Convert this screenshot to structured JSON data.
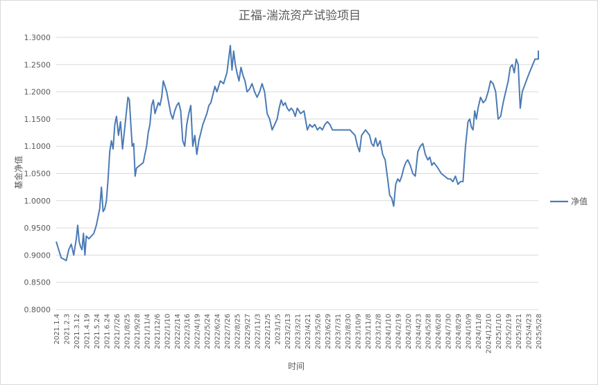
{
  "chart_data": {
    "type": "line",
    "title": "正福-湍流资产试验项目",
    "xlabel": "时间",
    "ylabel": "基金净值",
    "ylim": [
      0.8,
      1.3
    ],
    "y_ticks": [
      "0.8000",
      "0.8500",
      "0.9000",
      "0.9500",
      "1.0000",
      "1.0500",
      "1.1000",
      "1.1500",
      "1.2000",
      "1.2500",
      "1.3000"
    ],
    "grid": true,
    "legend_position": "right",
    "line_color": "#4a7ab5",
    "x_tick_labels": [
      "2021.1.4",
      "2021.2.3",
      "2021.3.12",
      "2021.4.19",
      "2021.5.24",
      "2021.6.24",
      "2021/7/26",
      "2021/8/25",
      "2021/9/28",
      "2021/11/4",
      "2021/12/6",
      "2022/1/10",
      "2022/2/14",
      "2022/3/16",
      "2022/4/19",
      "2022/5/24",
      "2022/6/24",
      "2022/7/26",
      "2022/8/25",
      "2022/9/27",
      "2022/11/3",
      "2022/12/5",
      "2023/1/5",
      "2023/2/13",
      "2023/3/21",
      "2023/4/21",
      "2023/5/26",
      "2023/6/29",
      "2023/7/31",
      "2023/8/30",
      "2023/10/9",
      "2023/11/8",
      "2023/12/8",
      "2024/1/10",
      "2024/2/19",
      "2024/3/20",
      "2024/4/23",
      "2024/5/28",
      "2024/6/28",
      "2024/7/30",
      "2024/8/29",
      "2024/10/9",
      "2024/11/8",
      "2024/12/10",
      "2025/1/10",
      "2025/2/19",
      "2025/3/21",
      "2025/4/23",
      "2025/5/28"
    ],
    "series": [
      {
        "name": "净值",
        "points": [
          [
            "2021.1.4",
            0.925
          ],
          [
            "2021.1.4",
            0.895
          ],
          [
            "2021.2.3",
            0.89
          ],
          [
            "2021.2.3",
            0.91
          ],
          [
            "2021.2.3",
            0.92
          ],
          [
            "2021.2.3",
            0.9
          ],
          [
            "2021.3.12",
            0.93
          ],
          [
            "2021.3.12",
            0.955
          ],
          [
            "2021.3.12",
            0.925
          ],
          [
            "2021.3.12",
            0.915
          ],
          [
            "2021.3.12",
            0.91
          ],
          [
            "2021.3.12",
            0.94
          ],
          [
            "2021.3.12",
            0.9
          ],
          [
            "2021.4.19",
            0.935
          ],
          [
            "2021.4.19",
            0.93
          ],
          [
            "2021.4.19",
            0.935
          ],
          [
            "2021.4.19",
            0.94
          ],
          [
            "2021.5.24",
            0.955
          ],
          [
            "2021.5.24",
            0.97
          ],
          [
            "2021.5.24",
            0.985
          ],
          [
            "2021.5.24",
            1.025
          ],
          [
            "2021.5.24",
            0.98
          ],
          [
            "2021.5.24",
            0.985
          ],
          [
            "2021.6.24",
            1.0
          ],
          [
            "2021.6.24",
            1.04
          ],
          [
            "2021.6.24",
            1.09
          ],
          [
            "2021.6.24",
            1.11
          ],
          [
            "2021.6.24",
            1.095
          ],
          [
            "2021.6.24",
            1.14
          ],
          [
            "2021/7/26",
            1.155
          ],
          [
            "2021/7/26",
            1.12
          ],
          [
            "2021/7/26",
            1.145
          ],
          [
            "2021/7/26",
            1.095
          ],
          [
            "2021/7/26",
            1.13
          ],
          [
            "2021/8/25",
            1.165
          ],
          [
            "2021/8/25",
            1.19
          ],
          [
            "2021/8/25",
            1.185
          ],
          [
            "2021/8/25",
            1.14
          ],
          [
            "2021/8/25",
            1.1
          ],
          [
            "2021/8/25",
            1.105
          ],
          [
            "2021/8/25",
            1.045
          ],
          [
            "2021/9/28",
            1.06
          ],
          [
            "2021/9/28",
            1.065
          ],
          [
            "2021/9/28",
            1.07
          ],
          [
            "2021/11/4",
            1.1
          ],
          [
            "2021/11/4",
            1.125
          ],
          [
            "2021/11/4",
            1.14
          ],
          [
            "2021/11/4",
            1.175
          ],
          [
            "2021/11/4",
            1.185
          ],
          [
            "2021/11/4",
            1.16
          ],
          [
            "2021/12/6",
            1.17
          ],
          [
            "2021/12/6",
            1.18
          ],
          [
            "2021/12/6",
            1.175
          ],
          [
            "2021/12/6",
            1.19
          ],
          [
            "2021/12/6",
            1.22
          ],
          [
            "2021/12/6",
            1.21
          ],
          [
            "2022/1/10",
            1.2
          ],
          [
            "2022/1/10",
            1.18
          ],
          [
            "2022/1/10",
            1.16
          ],
          [
            "2022/1/10",
            1.15
          ],
          [
            "2022/1/10",
            1.165
          ],
          [
            "2022/2/14",
            1.175
          ],
          [
            "2022/2/14",
            1.18
          ],
          [
            "2022/2/14",
            1.165
          ],
          [
            "2022/2/14",
            1.11
          ],
          [
            "2022/2/14",
            1.1
          ],
          [
            "2022/3/16",
            1.14
          ],
          [
            "2022/3/16",
            1.16
          ],
          [
            "2022/3/16",
            1.175
          ],
          [
            "2022/3/16",
            1.1
          ],
          [
            "2022/3/16",
            1.12
          ],
          [
            "2022/4/19",
            1.085
          ],
          [
            "2022/4/19",
            1.11
          ],
          [
            "2022/4/19",
            1.125
          ],
          [
            "2022/4/19",
            1.14
          ],
          [
            "2022/4/19",
            1.15
          ],
          [
            "2022/5/24",
            1.16
          ],
          [
            "2022/5/24",
            1.175
          ],
          [
            "2022/5/24",
            1.18
          ],
          [
            "2022/5/24",
            1.195
          ],
          [
            "2022/5/24",
            1.21
          ],
          [
            "2022/6/24",
            1.2
          ],
          [
            "2022/6/24",
            1.22
          ],
          [
            "2022/6/24",
            1.215
          ],
          [
            "2022/7/26",
            1.235
          ],
          [
            "2022/7/26",
            1.26
          ],
          [
            "2022/7/26",
            1.285
          ],
          [
            "2022/7/26",
            1.24
          ],
          [
            "2022/7/26",
            1.275
          ],
          [
            "2022/7/26",
            1.25
          ],
          [
            "2022/8/25",
            1.235
          ],
          [
            "2022/8/25",
            1.22
          ],
          [
            "2022/8/25",
            1.245
          ],
          [
            "2022/8/25",
            1.23
          ],
          [
            "2022/8/25",
            1.22
          ],
          [
            "2022/9/27",
            1.2
          ],
          [
            "2022/9/27",
            1.205
          ],
          [
            "2022/9/27",
            1.215
          ],
          [
            "2022/9/27",
            1.2
          ],
          [
            "2022/11/3",
            1.19
          ],
          [
            "2022/11/3",
            1.2
          ],
          [
            "2022/11/3",
            1.215
          ],
          [
            "2022/11/3",
            1.2
          ],
          [
            "2022/12/5",
            1.16
          ],
          [
            "2022/12/5",
            1.15
          ],
          [
            "2022/12/5",
            1.13
          ],
          [
            "2022/12/5",
            1.14
          ],
          [
            "2023/1/5",
            1.15
          ],
          [
            "2023/1/5",
            1.17
          ],
          [
            "2023/1/5",
            1.185
          ],
          [
            "2023/1/5",
            1.175
          ],
          [
            "2023/1/5",
            1.18
          ],
          [
            "2023/2/13",
            1.17
          ],
          [
            "2023/2/13",
            1.165
          ],
          [
            "2023/2/13",
            1.17
          ],
          [
            "2023/2/13",
            1.165
          ],
          [
            "2023/2/13",
            1.155
          ],
          [
            "2023/3/21",
            1.17
          ],
          [
            "2023/3/21",
            1.16
          ],
          [
            "2023/3/21",
            1.165
          ],
          [
            "2023/4/21",
            1.13
          ],
          [
            "2023/4/21",
            1.14
          ],
          [
            "2023/4/21",
            1.135
          ],
          [
            "2023/4/21",
            1.14
          ],
          [
            "2023/5/26",
            1.13
          ],
          [
            "2023/5/26",
            1.135
          ],
          [
            "2023/5/26",
            1.13
          ],
          [
            "2023/5/26",
            1.14
          ],
          [
            "2023/6/29",
            1.145
          ],
          [
            "2023/6/29",
            1.14
          ],
          [
            "2023/6/29",
            1.13
          ],
          [
            "2023/6/29",
            1.13
          ],
          [
            "2023/7/31",
            1.13
          ],
          [
            "2023/7/31",
            1.13
          ],
          [
            "2023/7/31",
            1.13
          ],
          [
            "2023/8/30",
            1.13
          ],
          [
            "2023/8/30",
            1.13
          ],
          [
            "2023/8/30",
            1.125
          ],
          [
            "2023/8/30",
            1.12
          ],
          [
            "2023/10/9",
            1.1
          ],
          [
            "2023/10/9",
            1.09
          ],
          [
            "2023/10/9",
            1.12
          ],
          [
            "2023/10/9",
            1.125
          ],
          [
            "2023/10/9",
            1.13
          ],
          [
            "2023/11/8",
            1.125
          ],
          [
            "2023/11/8",
            1.12
          ],
          [
            "2023/11/8",
            1.105
          ],
          [
            "2023/11/8",
            1.1
          ],
          [
            "2023/11/8",
            1.115
          ],
          [
            "2023/12/8",
            1.1
          ],
          [
            "2023/12/8",
            1.11
          ],
          [
            "2023/12/8",
            1.085
          ],
          [
            "2023/12/8",
            1.075
          ],
          [
            "2024/1/10",
            1.04
          ],
          [
            "2024/1/10",
            1.01
          ],
          [
            "2024/1/10",
            1.005
          ],
          [
            "2024/1/10",
            0.99
          ],
          [
            "2024/1/10",
            1.03
          ],
          [
            "2024/2/19",
            1.04
          ],
          [
            "2024/2/19",
            1.035
          ],
          [
            "2024/2/19",
            1.045
          ],
          [
            "2024/2/19",
            1.06
          ],
          [
            "2024/2/19",
            1.07
          ],
          [
            "2024/3/20",
            1.075
          ],
          [
            "2024/3/20",
            1.065
          ],
          [
            "2024/3/20",
            1.05
          ],
          [
            "2024/3/20",
            1.045
          ],
          [
            "2024/4/23",
            1.09
          ],
          [
            "2024/4/23",
            1.1
          ],
          [
            "2024/4/23",
            1.105
          ],
          [
            "2024/4/23",
            1.085
          ],
          [
            "2024/5/28",
            1.075
          ],
          [
            "2024/5/28",
            1.08
          ],
          [
            "2024/5/28",
            1.065
          ],
          [
            "2024/5/28",
            1.07
          ],
          [
            "2024/5/28",
            1.065
          ],
          [
            "2024/6/28",
            1.06
          ],
          [
            "2024/6/28",
            1.05
          ],
          [
            "2024/6/28",
            1.045
          ],
          [
            "2024/7/30",
            1.04
          ],
          [
            "2024/7/30",
            1.04
          ],
          [
            "2024/7/30",
            1.035
          ],
          [
            "2024/7/30",
            1.045
          ],
          [
            "2024/8/29",
            1.03
          ],
          [
            "2024/8/29",
            1.035
          ],
          [
            "2024/8/29",
            1.035
          ],
          [
            "2024/8/29",
            1.1
          ],
          [
            "2024/10/9",
            1.145
          ],
          [
            "2024/10/9",
            1.15
          ],
          [
            "2024/10/9",
            1.135
          ],
          [
            "2024/10/9",
            1.13
          ],
          [
            "2024/10/9",
            1.165
          ],
          [
            "2024/10/9",
            1.15
          ],
          [
            "2024/11/8",
            1.17
          ],
          [
            "2024/11/8",
            1.19
          ],
          [
            "2024/11/8",
            1.18
          ],
          [
            "2024/11/8",
            1.185
          ],
          [
            "2024/12/10",
            1.2
          ],
          [
            "2024/12/10",
            1.22
          ],
          [
            "2024/12/10",
            1.215
          ],
          [
            "2024/12/10",
            1.2
          ],
          [
            "2025/1/10",
            1.15
          ],
          [
            "2025/1/10",
            1.155
          ],
          [
            "2025/1/10",
            1.18
          ],
          [
            "2025/1/10",
            1.2
          ],
          [
            "2025/2/19",
            1.22
          ],
          [
            "2025/2/19",
            1.245
          ],
          [
            "2025/2/19",
            1.25
          ],
          [
            "2025/2/19",
            1.235
          ],
          [
            "2025/2/19",
            1.26
          ],
          [
            "2025/3/21",
            1.25
          ],
          [
            "2025/3/21",
            1.17
          ],
          [
            "2025/3/21",
            1.2
          ],
          [
            "2025/3/21",
            1.21
          ],
          [
            "2025/3/21",
            1.22
          ],
          [
            "2025/4/23",
            1.23
          ],
          [
            "2025/4/23",
            1.245
          ],
          [
            "2025/4/23",
            1.26
          ],
          [
            "2025/5/28",
            1.26
          ],
          [
            "2025/5/28",
            1.27
          ],
          [
            "2025/5/28",
            1.275
          ],
          [
            "2025/5/28",
            1.265
          ]
        ]
      }
    ]
  }
}
